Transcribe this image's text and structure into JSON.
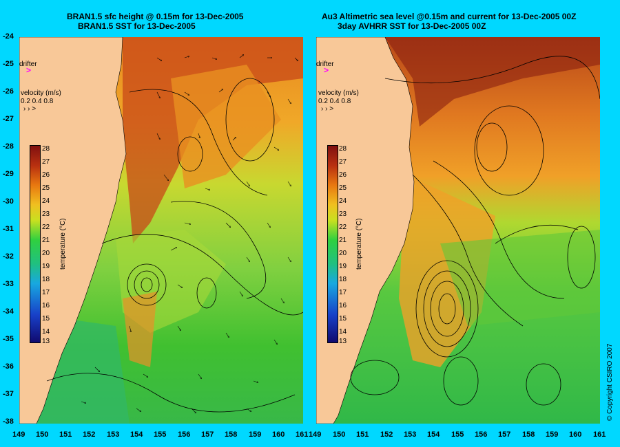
{
  "left": {
    "title_line1": "BRAN1.5 sfc height @ 0.15m for 13-Dec-2005",
    "title_line2": "BRAN1.5 SST for 13-Dec-2005"
  },
  "right": {
    "title_line1": "Au3 Altimetric sea level  @0.15m and current for 13-Dec-2005 00Z",
    "title_line2": "3day AVHRR SST for 13-Dec-2005 00Z"
  },
  "y_ticks": [
    "-24",
    "-25",
    "-26",
    "-27",
    "-28",
    "-29",
    "-30",
    "-31",
    "-32",
    "-33",
    "-34",
    "-35",
    "-36",
    "-37",
    "-38"
  ],
  "x_ticks": [
    "149",
    "150",
    "151",
    "152",
    "153",
    "154",
    "155",
    "156",
    "157",
    "158",
    "159",
    "160",
    "161"
  ],
  "colorbar": {
    "ticks": [
      "28",
      "27",
      "26",
      "25",
      "24",
      "23",
      "22",
      "21",
      "20",
      "19",
      "18",
      "17",
      "16",
      "15",
      "14",
      "13"
    ],
    "label": "temperature (°C)"
  },
  "legend": {
    "drifter_label": "drifter",
    "velocity_label": "velocity (m/s)",
    "velocity_values": "0.2 0.4 0.8"
  },
  "copyright": "© Copyright CSIRO 2007",
  "colors": {
    "background": "#00d8ff",
    "land": "#f8c898",
    "drifter": "#ff00ff"
  }
}
